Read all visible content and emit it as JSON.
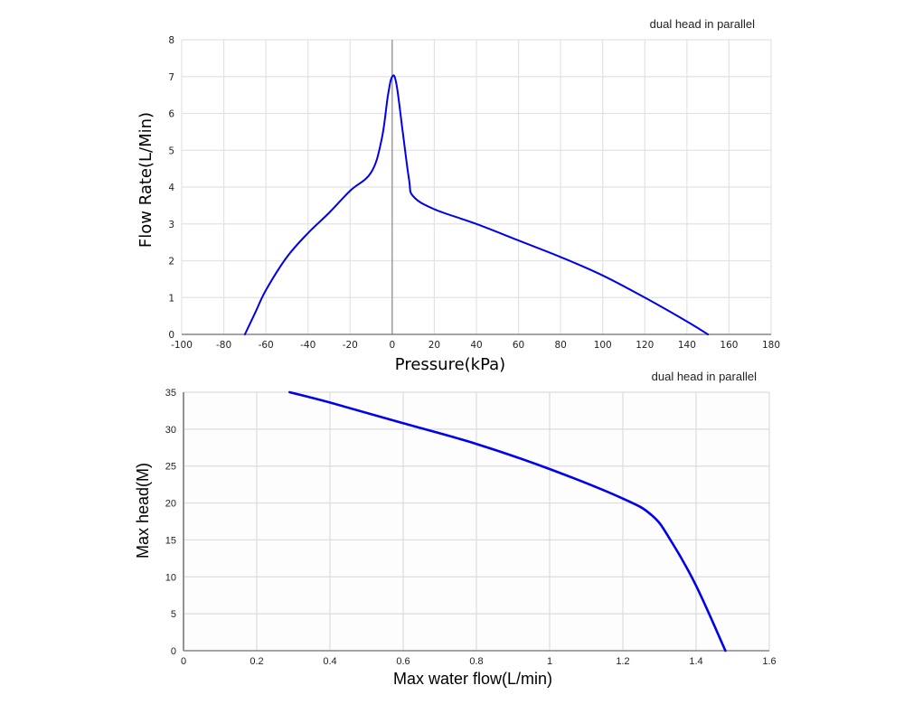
{
  "chart_data": [
    {
      "type": "line",
      "title": "dual head in parallel",
      "xlabel": "Pressure(kPa)",
      "ylabel": "Flow Rate(L/Min)",
      "xlim": [
        -100,
        180
      ],
      "ylim": [
        0,
        8
      ],
      "xticks": [
        -100,
        -80,
        -60,
        -40,
        -20,
        0,
        20,
        40,
        60,
        80,
        100,
        120,
        140,
        160,
        180
      ],
      "yticks": [
        0,
        1,
        2,
        3,
        4,
        5,
        6,
        7,
        8
      ],
      "grid": true,
      "series": [
        {
          "name": "flow rate",
          "color": "#0000ee",
          "x": [
            -70,
            -65,
            -60,
            -50,
            -40,
            -30,
            -20,
            -10,
            -5,
            -2,
            0,
            2,
            5,
            8,
            10,
            20,
            40,
            60,
            80,
            100,
            120,
            140,
            150
          ],
          "y": [
            0,
            0.6,
            1.2,
            2.1,
            2.75,
            3.3,
            3.9,
            4.4,
            5.3,
            6.5,
            7.0,
            6.8,
            5.5,
            4.2,
            3.75,
            3.4,
            3.0,
            2.55,
            2.1,
            1.6,
            1.0,
            0.35,
            0
          ]
        }
      ]
    },
    {
      "type": "line",
      "title": "dual head in parallel",
      "xlabel": "Max water flow(L/min)",
      "ylabel": "Max head(M)",
      "xlim": [
        0,
        1.6
      ],
      "ylim": [
        0,
        35
      ],
      "xticks": [
        0,
        0.2,
        0.4,
        0.6,
        0.8,
        1,
        1.2,
        1.4,
        1.6
      ],
      "yticks": [
        0,
        5,
        10,
        15,
        20,
        25,
        30,
        35
      ],
      "grid": true,
      "series": [
        {
          "name": "max head",
          "color": "#0000ee",
          "x": [
            0.29,
            0.4,
            0.6,
            0.8,
            1.0,
            1.2,
            1.28,
            1.33,
            1.4,
            1.48
          ],
          "y": [
            35,
            33.6,
            30.8,
            28.0,
            24.6,
            20.6,
            18.3,
            15.0,
            8.8,
            0
          ]
        }
      ]
    }
  ]
}
